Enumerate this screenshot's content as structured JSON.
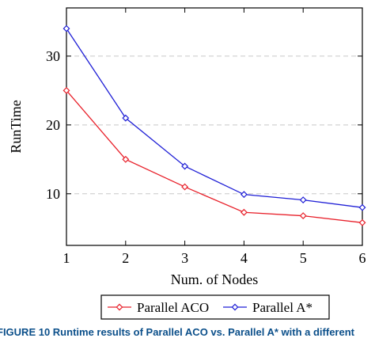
{
  "chart_data": {
    "type": "line",
    "x": [
      1,
      2,
      3,
      4,
      5,
      6
    ],
    "series": [
      {
        "name": "Parallel ACO",
        "color": "#e8202a",
        "marker": "diamond",
        "values": [
          25,
          15,
          11,
          7.3,
          6.8,
          5.8
        ]
      },
      {
        "name": "Parallel A*",
        "color": "#1f1fd6",
        "marker": "diamond",
        "values": [
          34,
          21,
          14,
          9.9,
          9.1,
          8.0
        ]
      }
    ],
    "xlabel": "Num. of Nodes",
    "ylabel": "RunTime",
    "xlim": [
      1,
      6
    ],
    "ylim": [
      2.5,
      37
    ],
    "xticks": [
      1,
      2,
      3,
      4,
      5,
      6
    ],
    "yticks": [
      10,
      20,
      30
    ],
    "grid": "horizontal dashed",
    "legend": "bottom, outside"
  },
  "caption": "FIGURE 10  Runtime results of Parallel ACO vs. Parallel A* with a different"
}
